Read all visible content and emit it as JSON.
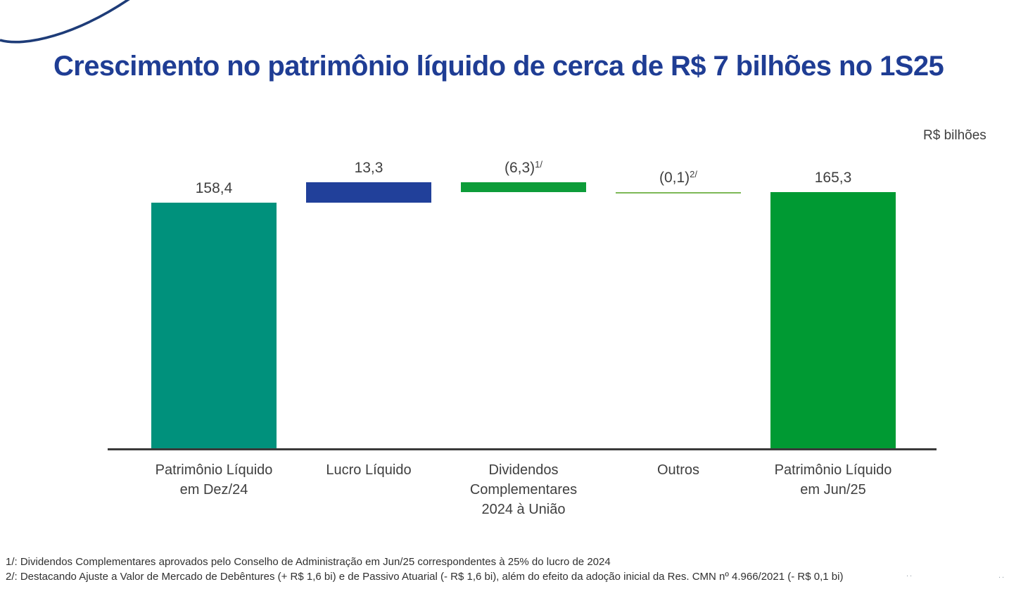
{
  "slide": {
    "title": "Crescimento no patrimônio líquido de cerca de R$ 7 bilhões no 1S25",
    "unit_label": "R$ bilhões",
    "footnotes": [
      "1/: Dividendos Complementares aprovados pelo Conselho de Administração em Jun/25 correspondentes à 25% do lucro de 2024",
      "2/: Destacando Ajuste a Valor de Mercado de Debêntures (+ R$ 1,6 bi) e de Passivo Atuarial (- R$ 1,6 bi), além do efeito da adoção inicial da Res. CMN nº 4.966/2021 (- R$ 0,1 bi)"
    ],
    "stray_marks": [
      "..",
      ".."
    ]
  },
  "colors": {
    "title": "#1f3d94",
    "curve": "#1e3c78",
    "axis": "#3a3a3a",
    "text": "#3f3f3f",
    "teal": "#00917c",
    "dark_blue": "#21409a",
    "green": "#0d9c39",
    "bright_green": "#009a33",
    "light_green": "#7db857"
  },
  "chart_data": {
    "type": "bar",
    "subtype": "waterfall",
    "title": "Crescimento no patrimônio líquido de cerca de R$ 7 bilhões no 1S25",
    "unit": "R$ bilhões",
    "ylim": [
      0,
      175
    ],
    "grid": false,
    "legend": false,
    "categories": [
      "Patrimônio Líquido em Dez/24",
      "Lucro Líquido",
      "Dividendos Complementares 2024 à União",
      "Outros",
      "Patrimônio Líquido em Jun/25"
    ],
    "bars": [
      {
        "id": "pl-dez24",
        "category_lines": [
          "Patrimônio Líquido",
          "em Dez/24"
        ],
        "kind": "total",
        "value": 158.4,
        "display": "158,4",
        "sup": "",
        "color": "teal"
      },
      {
        "id": "lucro-liquido",
        "category_lines": [
          "Lucro Líquido"
        ],
        "kind": "delta",
        "value": 13.3,
        "display": "13,3",
        "sup": "",
        "color": "dark_blue"
      },
      {
        "id": "dividendos",
        "category_lines": [
          "Dividendos",
          "Complementares",
          "2024 à União"
        ],
        "kind": "delta",
        "value": -6.3,
        "display": "(6,3)",
        "sup": "1/",
        "color": "green"
      },
      {
        "id": "outros",
        "category_lines": [
          "Outros"
        ],
        "kind": "delta",
        "value": -0.1,
        "display": "(0,1)",
        "sup": "2/",
        "color": "light_green"
      },
      {
        "id": "pl-jun25",
        "category_lines": [
          "Patrimônio Líquido",
          "em Jun/25"
        ],
        "kind": "total",
        "value": 165.3,
        "display": "165,3",
        "sup": "",
        "color": "bright_green"
      }
    ]
  }
}
